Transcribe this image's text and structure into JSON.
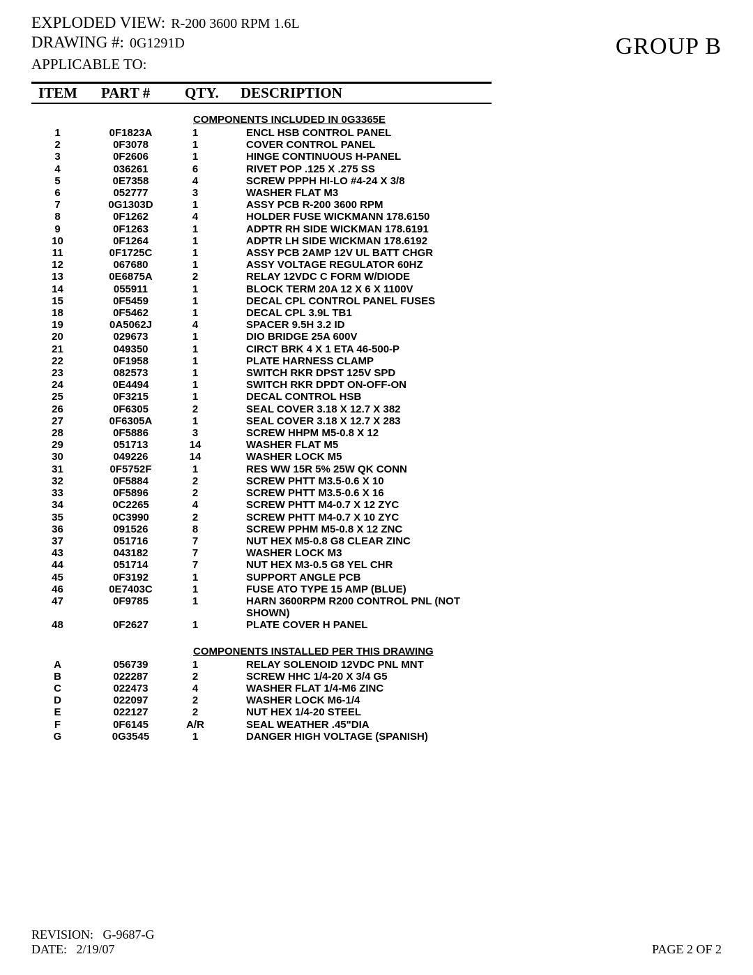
{
  "header": {
    "exploded_label": "EXPLODED VIEW:",
    "exploded_value": "R-200 3600 RPM 1.6L",
    "drawing_label": "DRAWING #:",
    "drawing_value": "0G1291D",
    "applicable_label": "APPLICABLE TO:",
    "group_label": "GROUP B"
  },
  "columns": {
    "item": "ITEM",
    "part": "PART #",
    "qty": "QTY.",
    "desc": "DESCRIPTION"
  },
  "section1_title": "COMPONENTS INCLUDED IN 0G3365E",
  "section2_title": "COMPONENTS INSTALLED PER THIS DRAWING",
  "section1": [
    {
      "item": "1",
      "part": "0F1823A",
      "qty": "1",
      "desc": "ENCL HSB CONTROL PANEL"
    },
    {
      "item": "2",
      "part": "0F3078",
      "qty": "1",
      "desc": "COVER CONTROL PANEL"
    },
    {
      "item": "3",
      "part": "0F2606",
      "qty": "1",
      "desc": "HINGE CONTINUOUS H-PANEL"
    },
    {
      "item": "4",
      "part": "036261",
      "qty": "6",
      "desc": "RIVET POP .125 X .275 SS"
    },
    {
      "item": "5",
      "part": "0E7358",
      "qty": "4",
      "desc": "SCREW PPPH HI-LO #4-24 X 3/8"
    },
    {
      "item": "6",
      "part": "052777",
      "qty": "3",
      "desc": "WASHER FLAT M3"
    },
    {
      "item": "7",
      "part": "0G1303D",
      "qty": "1",
      "desc": "ASSY PCB R-200 3600 RPM"
    },
    {
      "item": "8",
      "part": "0F1262",
      "qty": "4",
      "desc": "HOLDER FUSE WICKMANN 178.6150"
    },
    {
      "item": "9",
      "part": "0F1263",
      "qty": "1",
      "desc": "ADPTR RH SIDE WICKMAN 178.6191"
    },
    {
      "item": "10",
      "part": "0F1264",
      "qty": "1",
      "desc": "ADPTR LH SIDE WICKMAN 178.6192"
    },
    {
      "item": "11",
      "part": "0F1725C",
      "qty": "1",
      "desc": "ASSY PCB 2AMP 12V UL BATT CHGR"
    },
    {
      "item": "12",
      "part": "067680",
      "qty": "1",
      "desc": "ASSY VOLTAGE REGULATOR 60HZ"
    },
    {
      "item": "13",
      "part": "0E6875A",
      "qty": "2",
      "desc": "RELAY 12VDC C FORM W/DIODE"
    },
    {
      "item": "14",
      "part": "055911",
      "qty": "1",
      "desc": "BLOCK TERM 20A 12 X 6 X 1100V"
    },
    {
      "item": "15",
      "part": "0F5459",
      "qty": "1",
      "desc": "DECAL CPL CONTROL PANEL FUSES"
    },
    {
      "item": "18",
      "part": "0F5462",
      "qty": "1",
      "desc": "DECAL CPL 3.9L TB1"
    },
    {
      "item": "19",
      "part": "0A5062J",
      "qty": "4",
      "desc": "SPACER 9.5H 3.2 ID"
    },
    {
      "item": "20",
      "part": "029673",
      "qty": "1",
      "desc": "DIO BRIDGE 25A 600V"
    },
    {
      "item": "21",
      "part": "049350",
      "qty": "1",
      "desc": "CIRCT BRK 4 X 1 ETA 46-500-P"
    },
    {
      "item": "22",
      "part": "0F1958",
      "qty": "1",
      "desc": "PLATE HARNESS CLAMP"
    },
    {
      "item": "23",
      "part": "082573",
      "qty": "1",
      "desc": "SWITCH RKR DPST 125V SPD"
    },
    {
      "item": "24",
      "part": "0E4494",
      "qty": "1",
      "desc": "SWITCH RKR DPDT ON-OFF-ON"
    },
    {
      "item": "25",
      "part": "0F3215",
      "qty": "1",
      "desc": "DECAL CONTROL HSB"
    },
    {
      "item": "26",
      "part": "0F6305",
      "qty": "2",
      "desc": "SEAL COVER 3.18 X 12.7 X 382"
    },
    {
      "item": "27",
      "part": "0F6305A",
      "qty": "1",
      "desc": "SEAL COVER 3.18 X 12.7 X 283"
    },
    {
      "item": "28",
      "part": "0F5886",
      "qty": "3",
      "desc": "SCREW HHPM M5-0.8 X 12"
    },
    {
      "item": "29",
      "part": "051713",
      "qty": "14",
      "desc": "WASHER FLAT M5"
    },
    {
      "item": "30",
      "part": "049226",
      "qty": "14",
      "desc": "WASHER LOCK M5"
    },
    {
      "item": "31",
      "part": "0F5752F",
      "qty": "1",
      "desc": "RES WW 15R 5% 25W QK CONN"
    },
    {
      "item": "32",
      "part": "0F5884",
      "qty": "2",
      "desc": "SCREW PHTT M3.5-0.6 X 10"
    },
    {
      "item": "33",
      "part": "0F5896",
      "qty": "2",
      "desc": "SCREW PHTT M3.5-0.6 X 16"
    },
    {
      "item": "34",
      "part": "0C2265",
      "qty": "4",
      "desc": "SCREW PHTT M4-0.7 X 12 ZYC"
    },
    {
      "item": "35",
      "part": "0C3990",
      "qty": "2",
      "desc": "SCREW PHTT M4-0.7 X 10 ZYC"
    },
    {
      "item": "36",
      "part": "091526",
      "qty": "8",
      "desc": "SCREW PPHM M5-0.8 X 12 ZNC"
    },
    {
      "item": "37",
      "part": "051716",
      "qty": "7",
      "desc": "NUT HEX M5-0.8 G8 CLEAR ZINC"
    },
    {
      "item": "43",
      "part": "043182",
      "qty": "7",
      "desc": "WASHER LOCK M3"
    },
    {
      "item": "44",
      "part": "051714",
      "qty": "7",
      "desc": "NUT HEX M3-0.5 G8 YEL CHR"
    },
    {
      "item": "45",
      "part": "0F3192",
      "qty": "1",
      "desc": "SUPPORT ANGLE PCB"
    },
    {
      "item": "46",
      "part": "0E7403C",
      "qty": "1",
      "desc": "FUSE ATO TYPE 15 AMP (BLUE)"
    },
    {
      "item": "47",
      "part": "0F9785",
      "qty": "1",
      "desc": "HARN 3600RPM R200 CONTROL PNL (NOT SHOWN)"
    },
    {
      "item": "48",
      "part": "0F2627",
      "qty": "1",
      "desc": "PLATE COVER H PANEL"
    }
  ],
  "section2": [
    {
      "item": "A",
      "part": "056739",
      "qty": "1",
      "desc": "RELAY SOLENOID 12VDC PNL MNT"
    },
    {
      "item": "B",
      "part": "022287",
      "qty": "2",
      "desc": "SCREW HHC 1/4-20 X 3/4 G5"
    },
    {
      "item": "C",
      "part": "022473",
      "qty": "4",
      "desc": "WASHER FLAT 1/4-M6 ZINC"
    },
    {
      "item": "D",
      "part": "022097",
      "qty": "2",
      "desc": "WASHER LOCK M6-1/4"
    },
    {
      "item": "E",
      "part": "022127",
      "qty": "2",
      "desc": "NUT HEX 1/4-20 STEEL"
    },
    {
      "item": "F",
      "part": "0F6145",
      "qty": "A/R",
      "desc": "SEAL WEATHER .45\"DIA"
    },
    {
      "item": "G",
      "part": "0G3545",
      "qty": "1",
      "desc": "DANGER HIGH VOLTAGE (SPANISH)"
    }
  ],
  "footer": {
    "revision_label": "REVISION:",
    "revision_value": "G-9687-G",
    "date_label": "DATE:",
    "date_value": "2/19/07",
    "page": "PAGE 2 OF 2"
  }
}
